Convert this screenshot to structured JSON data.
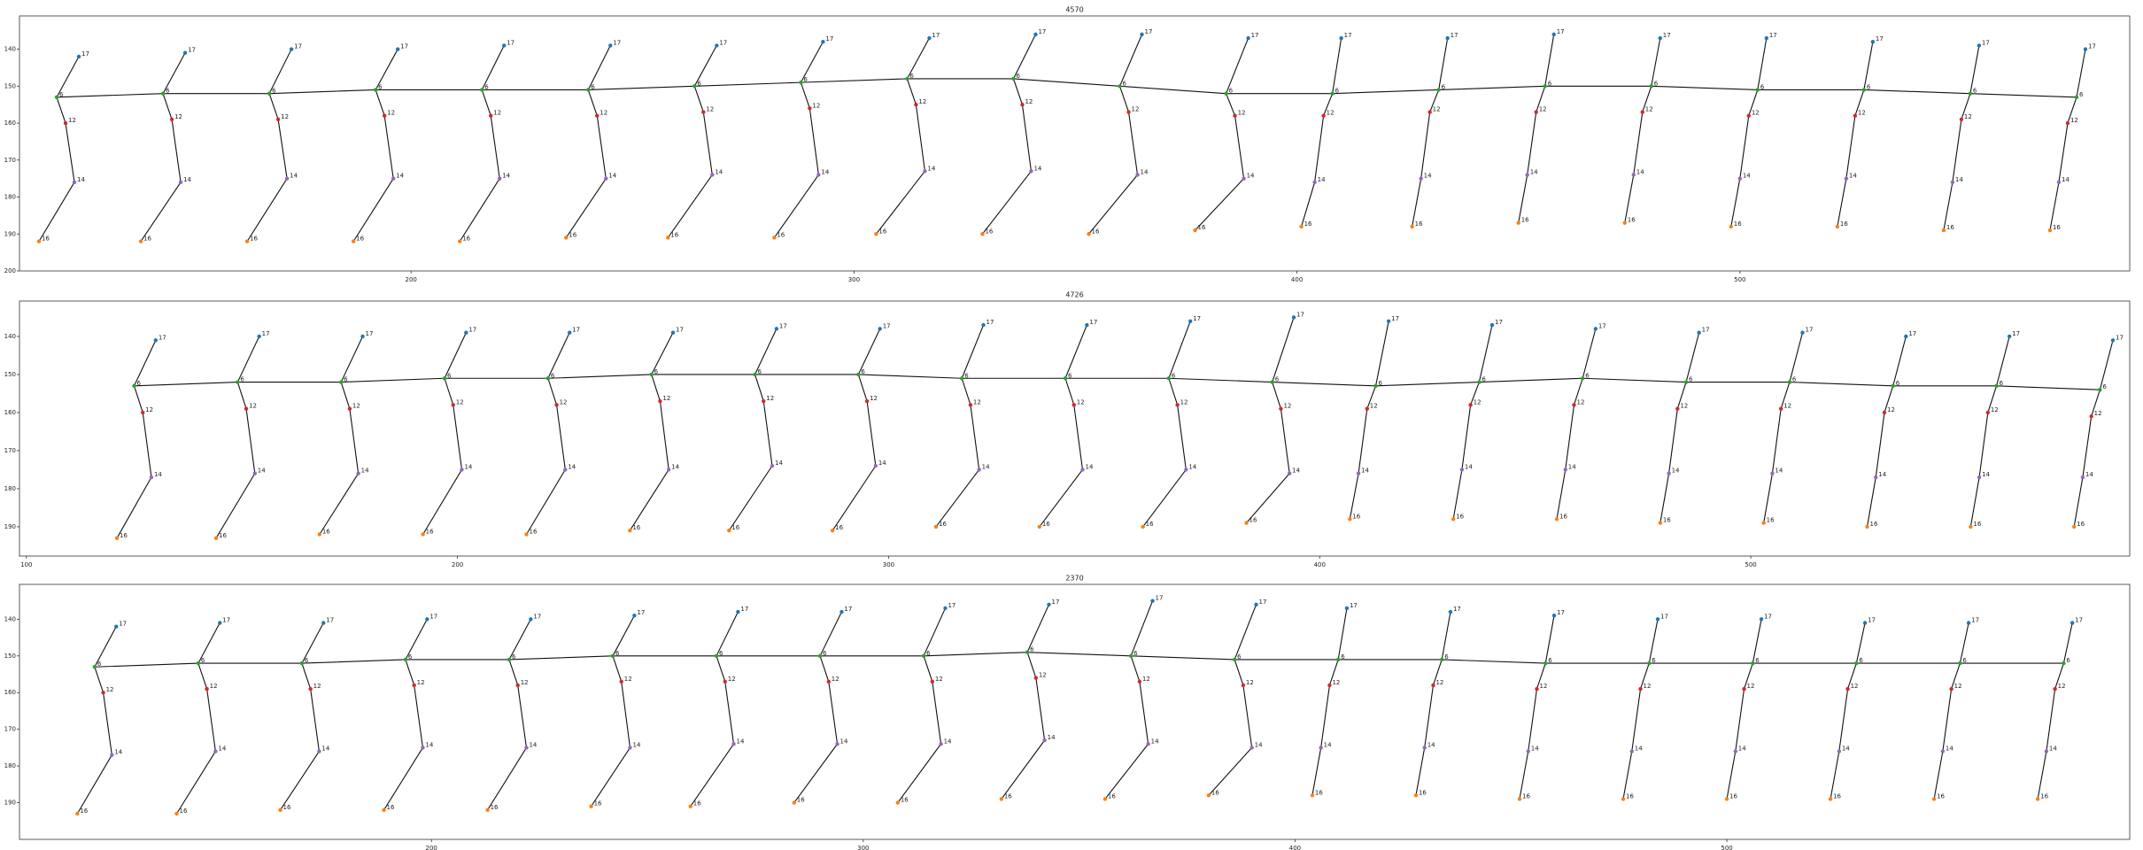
{
  "chart_data": [
    {
      "type": "skeleton",
      "title": "4570",
      "xlim": [
        111.6,
        588
      ],
      "ylim": [
        200,
        131
      ],
      "xticks": [
        200,
        300,
        400,
        500
      ],
      "yticks": [
        140,
        150,
        160,
        170,
        180,
        190,
        200
      ],
      "series": [
        {
          "label": "17",
          "color": "#1f77b4",
          "x": [
            125,
            149,
            173,
            197,
            221,
            245,
            269,
            293,
            317,
            341,
            365,
            389,
            410,
            434,
            458,
            482,
            506,
            530,
            554,
            578
          ],
          "values": [
            142,
            141,
            140,
            140,
            139,
            139,
            139,
            138,
            137,
            136,
            136,
            137,
            137,
            137,
            136,
            137,
            137,
            138,
            139,
            140
          ]
        },
        {
          "label": "6",
          "color": "#2ca02c",
          "x": [
            120,
            144,
            168,
            192,
            216,
            240,
            264,
            288,
            312,
            336,
            360,
            384,
            408,
            432,
            456,
            480,
            504,
            528,
            552,
            576
          ],
          "values": [
            153,
            152,
            152,
            151,
            151,
            151,
            150,
            149,
            148,
            148,
            150,
            152,
            152,
            151,
            150,
            150,
            151,
            151,
            152,
            153
          ]
        },
        {
          "label": "12",
          "color": "#d62728",
          "x": [
            122,
            146,
            170,
            194,
            218,
            242,
            266,
            290,
            314,
            338,
            362,
            386,
            406,
            430,
            454,
            478,
            502,
            526,
            550,
            574
          ],
          "values": [
            160,
            159,
            159,
            158,
            158,
            158,
            157,
            156,
            155,
            155,
            157,
            158,
            158,
            157,
            157,
            157,
            158,
            158,
            159,
            160
          ]
        },
        {
          "label": "14",
          "color": "#9467bd",
          "x": [
            124,
            148,
            172,
            196,
            220,
            244,
            268,
            292,
            316,
            340,
            364,
            388,
            404,
            428,
            452,
            476,
            500,
            524,
            548,
            572
          ],
          "values": [
            176,
            176,
            175,
            175,
            175,
            175,
            174,
            174,
            173,
            173,
            174,
            175,
            176,
            175,
            174,
            174,
            175,
            175,
            176,
            176
          ]
        },
        {
          "label": "16",
          "color": "#ff7f0e",
          "x": [
            116,
            139,
            163,
            187,
            211,
            235,
            258,
            282,
            305,
            329,
            353,
            377,
            401,
            426,
            450,
            474,
            498,
            522,
            546,
            570
          ],
          "values": [
            192,
            192,
            192,
            192,
            192,
            191,
            191,
            191,
            190,
            190,
            190,
            189,
            188,
            188,
            187,
            187,
            188,
            188,
            189,
            189
          ]
        }
      ]
    },
    {
      "type": "skeleton",
      "title": "4726",
      "xlim": [
        98.4,
        587.9
      ],
      "ylim": [
        197.7,
        130.7
      ],
      "xticks": [
        100,
        200,
        300,
        400,
        500
      ],
      "yticks": [
        140,
        150,
        160,
        170,
        180,
        190
      ],
      "series": [
        {
          "label": "17",
          "color": "#1f77b4",
          "x": [
            130,
            154,
            178,
            202,
            226,
            250,
            274,
            298,
            322,
            346,
            370,
            394,
            416,
            440,
            464,
            488,
            512,
            536,
            560,
            584
          ],
          "values": [
            141,
            140,
            140,
            139,
            139,
            139,
            138,
            138,
            137,
            137,
            136,
            135,
            136,
            137,
            138,
            139,
            139,
            140,
            140,
            141
          ]
        },
        {
          "label": "6",
          "color": "#2ca02c",
          "x": [
            125,
            149,
            173,
            197,
            221,
            245,
            269,
            293,
            317,
            341,
            365,
            389,
            413,
            437,
            461,
            485,
            509,
            533,
            557,
            581
          ],
          "values": [
            153,
            152,
            152,
            151,
            151,
            150,
            150,
            150,
            151,
            151,
            151,
            152,
            153,
            152,
            151,
            152,
            152,
            153,
            153,
            154
          ]
        },
        {
          "label": "12",
          "color": "#d62728",
          "x": [
            127,
            151,
            175,
            199,
            223,
            247,
            271,
            295,
            319,
            343,
            367,
            391,
            411,
            435,
            459,
            483,
            507,
            531,
            555,
            579
          ],
          "values": [
            160,
            159,
            159,
            158,
            158,
            157,
            157,
            157,
            158,
            158,
            158,
            159,
            159,
            158,
            158,
            159,
            159,
            160,
            160,
            161
          ]
        },
        {
          "label": "14",
          "color": "#9467bd",
          "x": [
            129,
            153,
            177,
            201,
            225,
            249,
            273,
            297,
            321,
            345,
            369,
            393,
            409,
            433,
            457,
            481,
            505,
            529,
            553,
            577
          ],
          "values": [
            177,
            176,
            176,
            175,
            175,
            175,
            174,
            174,
            175,
            175,
            175,
            176,
            176,
            175,
            175,
            176,
            176,
            177,
            177,
            177
          ]
        },
        {
          "label": "16",
          "color": "#ff7f0e",
          "x": [
            121,
            144,
            168,
            192,
            216,
            240,
            263,
            287,
            311,
            335,
            359,
            383,
            407,
            431,
            455,
            479,
            503,
            527,
            551,
            575
          ],
          "values": [
            193,
            193,
            192,
            192,
            192,
            191,
            191,
            191,
            190,
            190,
            190,
            189,
            188,
            188,
            188,
            189,
            189,
            190,
            190,
            190
          ]
        }
      ]
    },
    {
      "type": "skeleton",
      "title": "2370",
      "xlim": [
        104.6,
        593.3
      ],
      "ylim": [
        200,
        130.5
      ],
      "xticks": [
        200,
        300,
        400,
        500
      ],
      "yticks": [
        140,
        150,
        160,
        170,
        180,
        190
      ],
      "series": [
        {
          "label": "17",
          "color": "#1f77b4",
          "x": [
            127,
            151,
            175,
            199,
            223,
            247,
            271,
            295,
            319,
            343,
            367,
            391,
            412,
            436,
            460,
            484,
            508,
            532,
            556,
            580
          ],
          "values": [
            142,
            141,
            141,
            140,
            140,
            139,
            138,
            138,
            137,
            136,
            135,
            136,
            137,
            138,
            139,
            140,
            140,
            141,
            141,
            141
          ]
        },
        {
          "label": "6",
          "color": "#2ca02c",
          "x": [
            122,
            146,
            170,
            194,
            218,
            242,
            266,
            290,
            314,
            338,
            362,
            386,
            410,
            434,
            458,
            482,
            506,
            530,
            554,
            578
          ],
          "values": [
            153,
            152,
            152,
            151,
            151,
            150,
            150,
            150,
            150,
            149,
            150,
            151,
            151,
            151,
            152,
            152,
            152,
            152,
            152,
            152
          ]
        },
        {
          "label": "12",
          "color": "#d62728",
          "x": [
            124,
            148,
            172,
            196,
            220,
            244,
            268,
            292,
            316,
            340,
            364,
            388,
            408,
            432,
            456,
            480,
            504,
            528,
            552,
            576
          ],
          "values": [
            160,
            159,
            159,
            158,
            158,
            157,
            157,
            157,
            157,
            156,
            157,
            158,
            158,
            158,
            159,
            159,
            159,
            159,
            159,
            159
          ]
        },
        {
          "label": "14",
          "color": "#9467bd",
          "x": [
            126,
            150,
            174,
            198,
            222,
            246,
            270,
            294,
            318,
            342,
            366,
            390,
            406,
            430,
            454,
            478,
            502,
            526,
            550,
            574
          ],
          "values": [
            177,
            176,
            176,
            175,
            175,
            175,
            174,
            174,
            174,
            173,
            174,
            175,
            175,
            175,
            176,
            176,
            176,
            176,
            176,
            176
          ]
        },
        {
          "label": "16",
          "color": "#ff7f0e",
          "x": [
            118,
            141,
            165,
            189,
            213,
            237,
            260,
            284,
            308,
            332,
            356,
            380,
            404,
            428,
            452,
            476,
            500,
            524,
            548,
            572
          ],
          "values": [
            193,
            193,
            192,
            192,
            192,
            191,
            191,
            190,
            190,
            189,
            189,
            188,
            188,
            188,
            189,
            189,
            189,
            189,
            189,
            189
          ]
        }
      ]
    }
  ]
}
